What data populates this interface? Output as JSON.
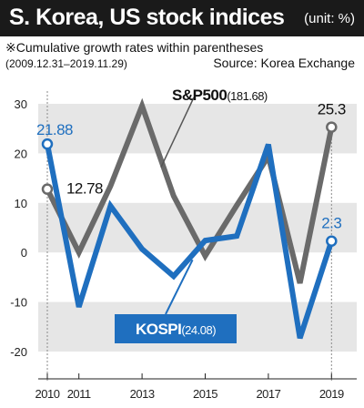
{
  "header": {
    "title": "S. Korea, US stock indices",
    "unit": "(unit: %)",
    "subtitle": "※Cumulative growth rates within parentheses",
    "period": "(2009.12.31–2019.11.29)",
    "source": "Source: Korea Exchange"
  },
  "chart_data": {
    "type": "line",
    "x_ticks": [
      "2010",
      "2011",
      "2013",
      "2015",
      "2017",
      "2019"
    ],
    "y_ticks": [
      "30",
      "20",
      "10",
      "0",
      "-10",
      "-20"
    ],
    "ylim": [
      -20,
      30
    ],
    "grid": "horizontal bands",
    "series": [
      {
        "name": "S&P500",
        "label": "S&P500(181.68)",
        "color": "#6a6a6a",
        "x": [
          2010,
          2011,
          2012,
          2013,
          2014,
          2015,
          2016,
          2017,
          2018,
          2019
        ],
        "values": [
          12.78,
          0,
          13.4,
          29.6,
          11.4,
          -0.7,
          9.5,
          19.4,
          -6.2,
          25.3
        ]
      },
      {
        "name": "KOSPI",
        "label": "KOSPI(24.08)",
        "color": "#1f6fbf",
        "x": [
          2010,
          2011,
          2012,
          2013,
          2014,
          2015,
          2016,
          2017,
          2018,
          2019
        ],
        "values": [
          21.88,
          -11.0,
          9.4,
          0.7,
          -4.8,
          2.4,
          3.3,
          21.8,
          -17.3,
          2.3
        ]
      }
    ],
    "annotations": {
      "sp_first": "12.78",
      "sp_last": "25.3",
      "kospi_first": "21.88",
      "kospi_last": "2.3"
    }
  }
}
